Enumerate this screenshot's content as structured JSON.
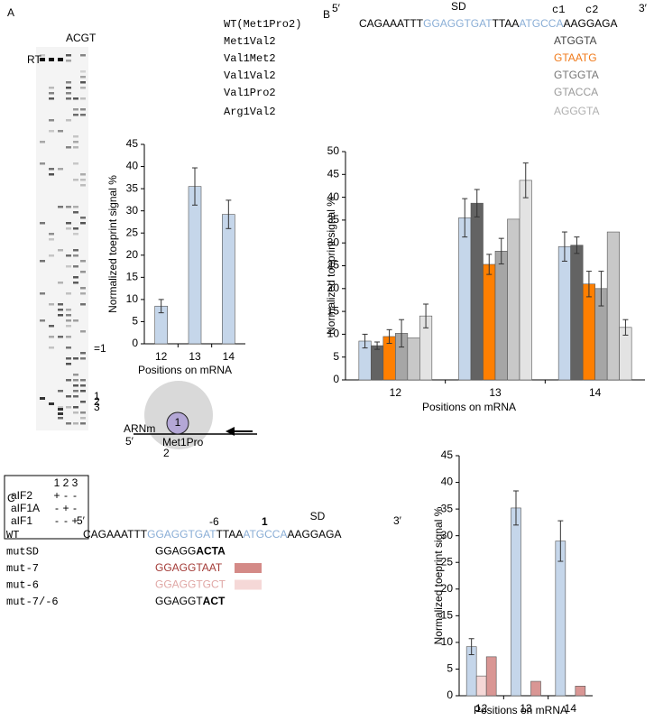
{
  "panel_a": {
    "letter": "A",
    "lanes": "ACGT",
    "rt": "RT",
    "gel_marks": [
      "=1",
      "1",
      "2",
      "3"
    ],
    "table": {
      "columns": [
        "1",
        "2",
        "3"
      ],
      "rows": [
        [
          "aIF2",
          "+",
          "-",
          "-"
        ],
        [
          "aIF1A",
          "-",
          "+",
          "-"
        ],
        [
          "aIF1",
          "-",
          "-",
          "+"
        ]
      ]
    },
    "diagram": {
      "mrna": "ARNm",
      "five": "5′",
      "site": "1",
      "codons": "Met1Pro",
      "codon2": "2"
    }
  },
  "panel_b": {
    "letter": "B",
    "five": "5′",
    "sd": "SD",
    "c1": "c1",
    "c2": "c2",
    "three": "3′",
    "rows": [
      {
        "label": "WT(Met1Pro2)",
        "color": "#8aaed6",
        "segments": [
          {
            "text": "CAGAAATTT",
            "color": "#000000"
          },
          {
            "text": "GGAGGTGAT",
            "color": "#8aaed6"
          },
          {
            "text": "TTAA",
            "color": "#000000"
          },
          {
            "text": "ATGCCA",
            "color": "#8aaed6"
          },
          {
            "text": "AAGGAGA",
            "color": "#000000"
          }
        ]
      },
      {
        "label": "Met1Val2",
        "color": "#444444",
        "segments": [
          {
            "text": "ATGGTA",
            "color": "#444444"
          }
        ]
      },
      {
        "label": "Val1Met2",
        "color": "#f07a1a",
        "segments": [
          {
            "text": "GTAATG",
            "color": "#f07a1a"
          }
        ]
      },
      {
        "label": "Val1Val2",
        "color": "#777777",
        "segments": [
          {
            "text": "GTGGTA",
            "color": "#777777"
          }
        ]
      },
      {
        "label": "Val1Pro2",
        "color": "#9a9a9a",
        "segments": [
          {
            "text": "GTACCA",
            "color": "#9a9a9a"
          }
        ]
      },
      {
        "label": "Arg1Val2",
        "color": "#b0b0b0",
        "segments": [
          {
            "text": "AGGGTA",
            "color": "#b0b0b0"
          }
        ]
      }
    ]
  },
  "panel_c": {
    "letter": "C",
    "five": "5′",
    "minus6": "-6",
    "one": "1",
    "sd": "SD",
    "three": "3′",
    "rows": [
      {
        "label": "WT",
        "color": "#8aaed6",
        "segments": [
          {
            "text": "CAGAAATTT",
            "color": "#000000"
          },
          {
            "text": "GGAGGTGAT",
            "color": "#8aaed6"
          },
          {
            "text": "TTAA",
            "color": "#000000"
          },
          {
            "text": "ATGCCA",
            "color": "#8aaed6"
          },
          {
            "text": "AAGGAGA",
            "color": "#000000"
          }
        ]
      },
      {
        "label": "mutSD",
        "color": "#000000",
        "segments": [
          {
            "text": "GGAGG",
            "color": "#000000"
          },
          {
            "text": "ACTA",
            "color": "#000000",
            "bold": true
          }
        ]
      },
      {
        "label": "mut-7",
        "color": "#a33a36",
        "swatch": "#d48a87",
        "segments": [
          {
            "text": "GGAGGT",
            "color": "#a33a36"
          },
          {
            "text": "AAT",
            "color": "#a33a36"
          }
        ]
      },
      {
        "label": "mut-6",
        "color": "#e0a8a6",
        "swatch": "#f5d8d7",
        "segments": [
          {
            "text": "GGAGGTGCT",
            "color": "#e0a8a6"
          }
        ]
      },
      {
        "label": "mut-7/-6",
        "color": "#000000",
        "segments": [
          {
            "text": "GGAGGT",
            "color": "#000000"
          },
          {
            "text": "ACT",
            "color": "#000000",
            "bold": true
          }
        ]
      }
    ]
  },
  "chart_data": [
    {
      "type": "bar",
      "y_label": "Normalized toeprint signal %",
      "x_label": "Positions on mRNA",
      "categories": [
        "12",
        "13",
        "14"
      ],
      "series": [
        {
          "color": "#c5d6ea",
          "values": [
            8.5,
            35.5,
            29.2
          ],
          "errors": [
            1.5,
            4.2,
            3.2
          ]
        }
      ],
      "ylim": [
        0,
        45
      ],
      "yticks": [
        0,
        5,
        10,
        15,
        20,
        25,
        30,
        35,
        40,
        45
      ]
    },
    {
      "type": "bar",
      "y_label": "Normalized toeprint signal %",
      "x_label": "Positions on mRNA",
      "categories": [
        "12",
        "13",
        "14"
      ],
      "series": [
        {
          "color": "#c5d6ea",
          "values": [
            8.5,
            35.5,
            29.2
          ],
          "errors": [
            1.5,
            4.2,
            3.2
          ]
        },
        {
          "color": "#636363",
          "values": [
            7.5,
            38.7,
            29.5
          ],
          "errors": [
            0.8,
            3.0,
            1.8
          ]
        },
        {
          "color": "#ff7f00",
          "values": [
            9.5,
            25.3,
            21.0
          ],
          "errors": [
            1.5,
            2.2,
            2.8
          ]
        },
        {
          "color": "#a6a6a6",
          "values": [
            10.2,
            28.2,
            20.0
          ],
          "errors": [
            3.0,
            2.8,
            3.8
          ]
        },
        {
          "color": "#c8c8c8",
          "values": [
            9.2,
            35.2,
            32.4
          ],
          "errors": [
            null,
            null,
            null
          ]
        },
        {
          "color": "#e3e3e3",
          "values": [
            14.0,
            43.7,
            11.5
          ],
          "errors": [
            2.6,
            3.8,
            1.7
          ]
        }
      ],
      "ylim": [
        0,
        50
      ],
      "yticks": [
        0,
        5,
        10,
        15,
        20,
        25,
        30,
        35,
        40,
        45,
        50
      ]
    },
    {
      "type": "bar",
      "y_label": "Normalized toeprint signal %",
      "x_label": "Positions on mRNA",
      "categories": [
        "12",
        "13",
        "14"
      ],
      "series": [
        {
          "color": "#c5d6ea",
          "values": [
            9.2,
            35.2,
            29.0
          ],
          "errors": [
            1.5,
            3.2,
            3.8
          ]
        },
        {
          "color": "#f5d8d7",
          "values": [
            3.7,
            null,
            null
          ],
          "errors": [
            null,
            null,
            null
          ]
        },
        {
          "color": "#d99694",
          "values": [
            7.3,
            2.7,
            1.8
          ],
          "errors": [
            null,
            null,
            null
          ]
        }
      ],
      "ylim": [
        0,
        45
      ],
      "yticks": [
        0,
        5,
        10,
        15,
        20,
        25,
        30,
        35,
        40,
        45
      ]
    }
  ]
}
